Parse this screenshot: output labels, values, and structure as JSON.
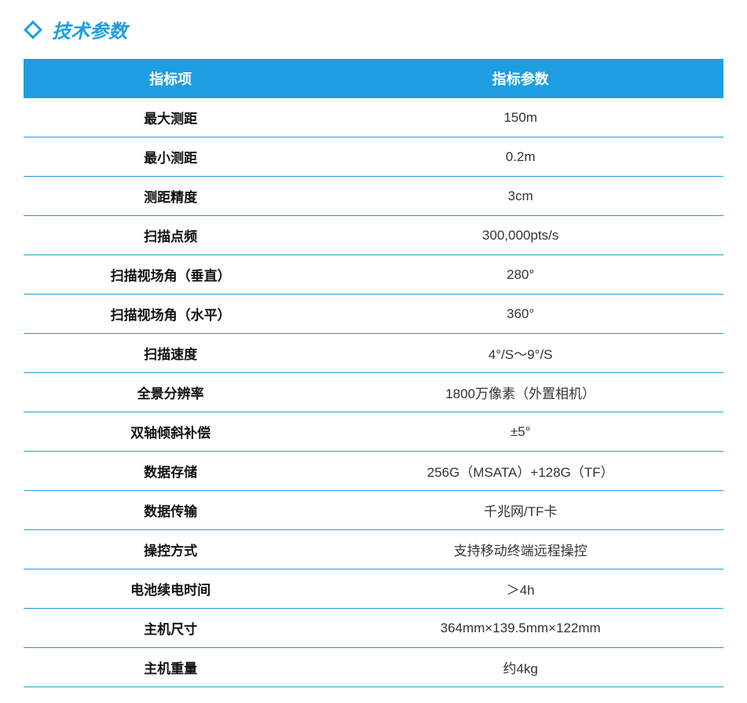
{
  "section_title": "技术参数",
  "accent_color": "#1e9ee0",
  "title_color": "#1e9ee0",
  "header_bg": "#1e9ee0",
  "header_fg": "#ffffff",
  "row_border_color": "#1e9ee0",
  "name_color": "#111111",
  "value_color": "#333333",
  "columns": [
    "指标项",
    "指标参数"
  ],
  "rows": [
    {
      "name": "最大测距",
      "value": "150m"
    },
    {
      "name": "最小测距",
      "value": "0.2m"
    },
    {
      "name": "测距精度",
      "value": "3cm"
    },
    {
      "name": "扫描点频",
      "value": "300,000pts/s"
    },
    {
      "name": "扫描视场角（垂直）",
      "value": "280°"
    },
    {
      "name": "扫描视场角（水平）",
      "value": "360°"
    },
    {
      "name": "扫描速度",
      "value": "4°/S～9°/S"
    },
    {
      "name": "全景分辨率",
      "value": "1800万像素（外置相机）"
    },
    {
      "name": "双轴倾斜补偿",
      "value": "±5°"
    },
    {
      "name": "数据存储",
      "value": "256G（MSATA）+128G（TF）"
    },
    {
      "name": "数据传输",
      "value": "千兆网/TF卡"
    },
    {
      "name": "操控方式",
      "value": "支持移动终端远程操控"
    },
    {
      "name": "电池续电时间",
      "value": "＞4h"
    },
    {
      "name": "主机尺寸",
      "value": "364mm×139.5mm×122mm"
    },
    {
      "name": "主机重量",
      "value": "约4kg"
    }
  ]
}
